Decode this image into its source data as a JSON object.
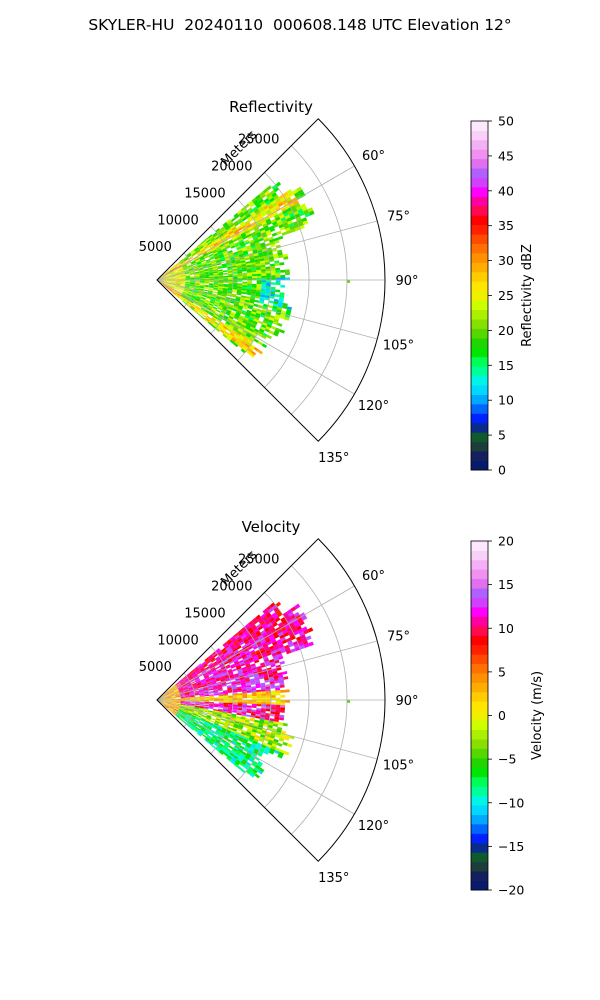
{
  "title": "SKYLER-HU  20240110  000608.148 UTC Elevation 12°",
  "chart_data": [
    {
      "type": "heatmap",
      "subtype": "polar-sector (radar PPI)",
      "title": "Reflectivity",
      "radial_axis_label": "Meters",
      "radial_ticks": [
        5000,
        10000,
        15000,
        20000,
        25000
      ],
      "radial_tick_labels": [
        "5000",
        "10000",
        "15000",
        "20000",
        "25000"
      ],
      "r_max": 30000,
      "angle_range_deg": [
        45,
        135
      ],
      "angle_ticks_deg": [
        60,
        75,
        90,
        105,
        120,
        135
      ],
      "angle_tick_labels": [
        "60°",
        "75°",
        "90°",
        "105°",
        "120°",
        "135°"
      ],
      "grid": true,
      "colorbar": {
        "label": "Reflectivity dBZ",
        "min": 0,
        "max": 50,
        "ticks": [
          0,
          5,
          10,
          15,
          20,
          25,
          30,
          35,
          40,
          45,
          50
        ],
        "tick_labels": [
          "0",
          "5",
          "10",
          "15",
          "20",
          "25",
          "30",
          "35",
          "40",
          "45",
          "50"
        ],
        "colors": [
          "#071a6b",
          "#14205e",
          "#1d3d3a",
          "#0f5a2c",
          "#0a2a8c",
          "#0022ff",
          "#0066ff",
          "#00a8ff",
          "#00d8ff",
          "#00f5e6",
          "#00ff99",
          "#00ff55",
          "#00e600",
          "#22d400",
          "#55d800",
          "#88e000",
          "#aaf000",
          "#ccff00",
          "#eef000",
          "#ffe600",
          "#ffcc00",
          "#ffae00",
          "#ff9000",
          "#ff7000",
          "#ff4a00",
          "#ff2000",
          "#ff0000",
          "#ff0a50",
          "#ff00a0",
          "#ff00ff",
          "#d040ff",
          "#b060ff",
          "#e070f0",
          "#f090f0",
          "#f4b0f4",
          "#f8d0f8",
          "#fce8fc"
        ]
      },
      "data_extent": {
        "azimuth_deg": [
          50,
          130
        ],
        "range_m": [
          0,
          22000
        ],
        "dominant_dbz": "15-25",
        "notes": "Echoes concentrated within ~20000 m; scattered returns near 90° at ~25000 m"
      }
    },
    {
      "type": "heatmap",
      "subtype": "polar-sector (radar PPI)",
      "title": "Velocity",
      "radial_axis_label": "Meters",
      "radial_ticks": [
        5000,
        10000,
        15000,
        20000,
        25000
      ],
      "radial_tick_labels": [
        "5000",
        "10000",
        "15000",
        "20000",
        "25000"
      ],
      "r_max": 30000,
      "angle_range_deg": [
        45,
        135
      ],
      "angle_ticks_deg": [
        60,
        75,
        90,
        105,
        120,
        135
      ],
      "angle_tick_labels": [
        "60°",
        "75°",
        "90°",
        "105°",
        "120°",
        "135°"
      ],
      "grid": true,
      "colorbar": {
        "label": "Velocity (m/s)",
        "min": -20,
        "max": 20,
        "ticks": [
          -20,
          -15,
          -10,
          -5,
          0,
          5,
          10,
          15,
          20
        ],
        "tick_labels": [
          "−20",
          "−15",
          "−10",
          "−5",
          "0",
          "5",
          "10",
          "15",
          "20"
        ],
        "colors": [
          "#071a6b",
          "#14205e",
          "#1d3d3a",
          "#0f5a2c",
          "#0a2a8c",
          "#0022ff",
          "#0066ff",
          "#00a8ff",
          "#00d8ff",
          "#00f5e6",
          "#00ff99",
          "#00ff55",
          "#00e600",
          "#22d400",
          "#55d800",
          "#88e000",
          "#aaf000",
          "#ccff00",
          "#eef000",
          "#ffe600",
          "#ffcc00",
          "#ffae00",
          "#ff9000",
          "#ff7000",
          "#ff4a00",
          "#ff2000",
          "#ff0000",
          "#ff0a50",
          "#ff00a0",
          "#ff00ff",
          "#d040ff",
          "#b060ff",
          "#e070f0",
          "#f090f0",
          "#f4b0f4",
          "#f8d0f8",
          "#fce8fc"
        ]
      },
      "data_extent": {
        "azimuth_deg": [
          50,
          130
        ],
        "range_m": [
          0,
          22000
        ],
        "notes": "Positive (red/magenta, ~10-15 m/s) toward upper azimuths, negative (green/cyan, ~-5 to -10 m/s) toward lower azimuths"
      }
    }
  ]
}
